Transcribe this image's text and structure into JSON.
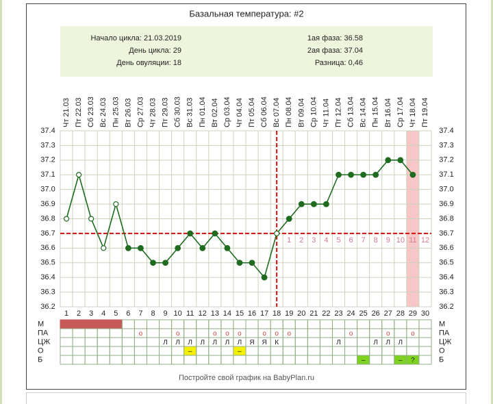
{
  "chart_data": {
    "type": "line",
    "title": "Базальная температура: #2",
    "info_left": [
      "Начало цикла: 21.03.2019",
      "День цикла: 29",
      "День овуляции: 18"
    ],
    "info_right": [
      "1ая фаза: 36.58",
      "2ая фаза: 37.04",
      "Разница: 0,46"
    ],
    "dates": [
      "Чт 21.03",
      "Пт 22.03",
      "Сб 23.03",
      "Вс 24.03",
      "Пн 25.03",
      "Вт 26.03",
      "Ср 27.03",
      "Чт 28.03",
      "Пт 29.03",
      "Сб 30.03",
      "Вс 31.03",
      "Пн 01.04",
      "Вт 02.04",
      "Ср 03.04",
      "Чт 04.04",
      "Пт 05.04",
      "Сб 06.04",
      "Вс 07.04",
      "Пн 08.04",
      "Вт 09.04",
      "Ср 10.04",
      "Чт 11.04",
      "Пт 12.04",
      "Сб 13.04",
      "Вс 14.04",
      "Пн 15.04",
      "Вт 16.04",
      "Ср 17.04",
      "Чт 18.04",
      "Пт 19.04"
    ],
    "categories": [
      1,
      2,
      3,
      4,
      5,
      6,
      7,
      8,
      9,
      10,
      11,
      12,
      13,
      14,
      15,
      16,
      17,
      18,
      19,
      20,
      21,
      22,
      23,
      24,
      25,
      26,
      27,
      28,
      29,
      30
    ],
    "values": [
      36.8,
      37.1,
      36.8,
      36.6,
      36.9,
      36.6,
      36.6,
      36.5,
      36.5,
      36.6,
      36.7,
      36.6,
      36.7,
      36.6,
      36.5,
      36.5,
      36.4,
      36.7,
      36.8,
      36.9,
      36.9,
      36.9,
      37.1,
      37.1,
      37.1,
      37.1,
      37.2,
      37.2,
      37.1,
      null
    ],
    "color": "#1f6b1f",
    "hollow_points": [
      0,
      1,
      2,
      3,
      4,
      17
    ],
    "ylim": [
      36.2,
      37.4
    ],
    "yticks": [
      36.2,
      36.3,
      36.4,
      36.5,
      36.6,
      36.7,
      36.8,
      36.9,
      {
        "value": 37,
        "label": "37.0"
      },
      37.1,
      37.2,
      37.3,
      37.4
    ],
    "grid": true,
    "coverline": 36.7,
    "ovulation_day": 18,
    "phase_days": [
      1,
      2,
      3,
      4,
      5,
      6,
      7,
      8,
      9,
      10,
      11,
      12
    ],
    "highlight_day": 29,
    "rows": [
      {
        "label": "М",
        "filled": [
          1,
          2,
          3,
          4,
          5
        ],
        "fill_color": "#c65a5a"
      },
      {
        "label": "ПА",
        "cells": [
          null,
          null,
          null,
          null,
          null,
          null,
          "о",
          null,
          null,
          "о",
          null,
          null,
          "о",
          "о",
          "о",
          null,
          "о",
          "о",
          "о",
          null,
          null,
          null,
          null,
          "о",
          null,
          null,
          "о",
          null,
          "о",
          null
        ],
        "text_color": "#d04040"
      },
      {
        "label": "ЦЖ",
        "cells": [
          null,
          null,
          null,
          null,
          null,
          null,
          null,
          null,
          "Л",
          "Л",
          "Л",
          "Л",
          "Л",
          "Л",
          "Л",
          "Я",
          "Я",
          "К",
          null,
          null,
          null,
          null,
          "Л",
          null,
          null,
          "Л",
          "Л",
          "Л",
          null,
          null
        ]
      },
      {
        "label": "О",
        "cells": [
          null,
          null,
          null,
          null,
          null,
          null,
          null,
          null,
          null,
          null,
          "–",
          null,
          null,
          null,
          "–",
          null,
          null,
          null,
          null,
          null,
          null,
          null,
          null,
          null,
          null,
          null,
          null,
          null,
          null,
          null
        ],
        "fill_color": "#f4f000"
      },
      {
        "label": "Б",
        "cells": [
          null,
          null,
          null,
          null,
          null,
          null,
          null,
          null,
          null,
          null,
          null,
          null,
          null,
          null,
          null,
          null,
          null,
          null,
          null,
          null,
          null,
          null,
          null,
          null,
          "–",
          null,
          null,
          "–",
          "?",
          null
        ],
        "fill_color": "#7ed321"
      }
    ],
    "footer": "Постройте свой график на BabyPlan.ru"
  }
}
